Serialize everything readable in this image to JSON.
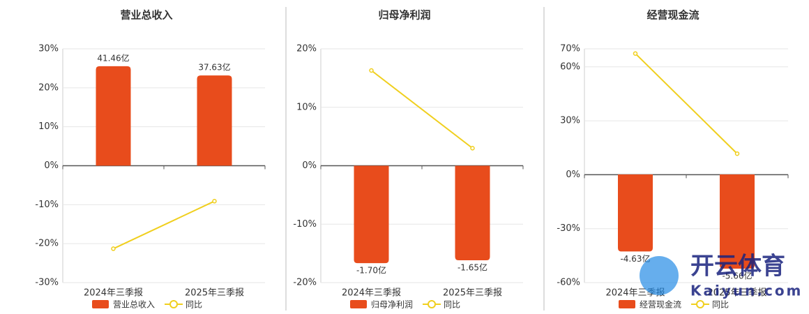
{
  "chart_data": [
    {
      "type": "bar",
      "title": "营业总收入",
      "categories": [
        "2024年三季报",
        "2025年三季报"
      ],
      "series": [
        {
          "name": "营业总收入",
          "type": "bar",
          "color": "#e84c1c",
          "axis": "y2",
          "values": [
            41.46,
            37.63
          ],
          "value_labels": [
            "41.46亿",
            "37.63亿"
          ]
        },
        {
          "name": "同比",
          "type": "line",
          "color": "#f0cf1e",
          "values": [
            -21.3,
            -9.1
          ]
        }
      ],
      "ylim": [
        -30,
        30
      ],
      "yticks": [
        {
          "value": -30,
          "label": "-30%"
        },
        {
          "value": -20,
          "label": "-20%"
        },
        {
          "value": -10,
          "label": "-10%"
        },
        {
          "value": 0,
          "label": "0%"
        },
        {
          "value": 10,
          "label": "10%"
        },
        {
          "value": 20,
          "label": "20%"
        },
        {
          "value": 30,
          "label": "30%"
        }
      ],
      "y2lim": [
        -48.7,
        48.7
      ],
      "grid": true,
      "legend": "bottom"
    },
    {
      "type": "bar",
      "title": "归母净利润",
      "categories": [
        "2024年三季报",
        "2025年三季报"
      ],
      "series": [
        {
          "name": "归母净利润",
          "type": "bar",
          "color": "#e84c1c",
          "axis": "y2",
          "values": [
            -1.7,
            -1.65
          ],
          "value_labels": [
            "-1.70亿",
            "-1.65亿"
          ]
        },
        {
          "name": "同比",
          "type": "line",
          "color": "#f0cf1e",
          "values": [
            16.3,
            3.0
          ]
        }
      ],
      "ylim": [
        -20,
        20
      ],
      "yticks": [
        {
          "value": -20,
          "label": "-20%"
        },
        {
          "value": -10,
          "label": "-10%"
        },
        {
          "value": 0,
          "label": "0%"
        },
        {
          "value": 10,
          "label": "10%"
        },
        {
          "value": 20,
          "label": "20%"
        }
      ],
      "y2lim": [
        -2.04,
        2.04
      ],
      "grid": true,
      "legend": "bottom"
    },
    {
      "type": "bar",
      "title": "经营现金流",
      "categories": [
        "2024年三季报",
        "2025年三季报"
      ],
      "series": [
        {
          "name": "经营现金流",
          "type": "bar",
          "color": "#e84c1c",
          "axis": "y2",
          "values": [
            -4.63,
            -5.66
          ],
          "value_labels": [
            "-4.63亿",
            "-5.66亿"
          ]
        },
        {
          "name": "同比",
          "type": "line",
          "color": "#f0cf1e",
          "values": [
            67.4,
            11.7
          ]
        }
      ],
      "ylim": [
        -60,
        70
      ],
      "yticks": [
        {
          "value": -60,
          "label": "-60%"
        },
        {
          "value": -30,
          "label": "-30%"
        },
        {
          "value": 0,
          "label": "0%"
        },
        {
          "value": 30,
          "label": "30%"
        },
        {
          "value": 60,
          "label": "60%"
        },
        {
          "value": 70,
          "label": "70%"
        }
      ],
      "y2lim": [
        -6.5,
        7.55
      ],
      "grid": true,
      "legend": "bottom"
    }
  ],
  "watermark": {
    "brand": "开云体育",
    "site": "Kaiyun.com"
  }
}
